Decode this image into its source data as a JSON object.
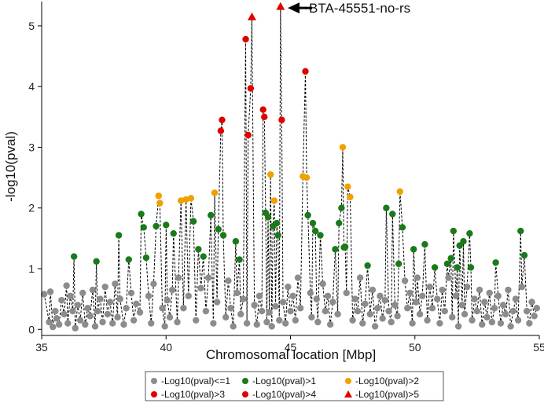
{
  "chart_data": {
    "type": "scatter",
    "title": "",
    "xlabel": "Chromosomal location [Mbp]",
    "ylabel": "-log10(pval)",
    "xlim": [
      35,
      55
    ],
    "ylim": [
      -0.1,
      5.4
    ],
    "xticks": [
      "35",
      "40",
      "45",
      "50",
      "55"
    ],
    "yticks": [
      "0",
      "1",
      "2",
      "3",
      "4",
      "5"
    ],
    "grid": false,
    "annotation": {
      "text": "BTA-45551-no-rs",
      "x": 44.6,
      "y": 5.32
    },
    "colors": {
      "le1": "#8c8c8c",
      "gt1": "#1a7a1a",
      "gt2": "#f0a000",
      "gt3": "#e00000",
      "gt4": "#e00000",
      "gt5": "#e00000",
      "connector": "#000000"
    },
    "legend": [
      {
        "key": "le1",
        "label": "-Log10(pval)<=1",
        "marker": "circle"
      },
      {
        "key": "gt1",
        "label": "-Log10(pval)>1",
        "marker": "circle"
      },
      {
        "key": "gt2",
        "label": "-Log10(pval)>2",
        "marker": "circle"
      },
      {
        "key": "gt3",
        "label": "-Log10(pval)>3",
        "marker": "circle"
      },
      {
        "key": "gt4",
        "label": "-Log10(pval)>4",
        "marker": "circle"
      },
      {
        "key": "gt5",
        "label": "-Log10(pval)>5",
        "marker": "triangle"
      }
    ],
    "peaks": [
      {
        "x": 36.3,
        "y": 1.2
      },
      {
        "x": 37.2,
        "y": 1.12
      },
      {
        "x": 38.1,
        "y": 1.55
      },
      {
        "x": 38.5,
        "y": 1.15
      },
      {
        "x": 39.0,
        "y": 1.9
      },
      {
        "x": 39.1,
        "y": 1.68
      },
      {
        "x": 39.2,
        "y": 1.18
      },
      {
        "x": 39.6,
        "y": 1.7
      },
      {
        "x": 39.7,
        "y": 2.2
      },
      {
        "x": 39.75,
        "y": 2.08
      },
      {
        "x": 40.0,
        "y": 1.72
      },
      {
        "x": 40.3,
        "y": 1.58
      },
      {
        "x": 40.6,
        "y": 2.12
      },
      {
        "x": 40.8,
        "y": 2.14
      },
      {
        "x": 41.0,
        "y": 2.16
      },
      {
        "x": 41.1,
        "y": 1.78
      },
      {
        "x": 41.3,
        "y": 1.32
      },
      {
        "x": 41.5,
        "y": 1.2
      },
      {
        "x": 41.8,
        "y": 1.88
      },
      {
        "x": 41.95,
        "y": 2.25
      },
      {
        "x": 42.1,
        "y": 1.65
      },
      {
        "x": 42.2,
        "y": 3.27
      },
      {
        "x": 42.25,
        "y": 3.45
      },
      {
        "x": 42.3,
        "y": 1.55
      },
      {
        "x": 42.8,
        "y": 1.45
      },
      {
        "x": 42.95,
        "y": 1.15
      },
      {
        "x": 43.2,
        "y": 4.78
      },
      {
        "x": 43.3,
        "y": 3.2
      },
      {
        "x": 43.4,
        "y": 3.97
      },
      {
        "x": 43.45,
        "y": 5.15
      },
      {
        "x": 43.9,
        "y": 3.62
      },
      {
        "x": 43.95,
        "y": 3.5
      },
      {
        "x": 44.0,
        "y": 1.92
      },
      {
        "x": 44.1,
        "y": 1.85
      },
      {
        "x": 44.2,
        "y": 2.55
      },
      {
        "x": 44.3,
        "y": 1.7
      },
      {
        "x": 44.35,
        "y": 2.12
      },
      {
        "x": 44.45,
        "y": 1.75
      },
      {
        "x": 44.5,
        "y": 1.55
      },
      {
        "x": 44.6,
        "y": 5.32
      },
      {
        "x": 44.65,
        "y": 3.45
      },
      {
        "x": 45.5,
        "y": 2.52
      },
      {
        "x": 45.6,
        "y": 4.25
      },
      {
        "x": 45.65,
        "y": 2.5
      },
      {
        "x": 45.7,
        "y": 1.88
      },
      {
        "x": 45.9,
        "y": 1.75
      },
      {
        "x": 46.0,
        "y": 1.62
      },
      {
        "x": 46.2,
        "y": 1.55
      },
      {
        "x": 46.8,
        "y": 1.32
      },
      {
        "x": 46.95,
        "y": 1.75
      },
      {
        "x": 47.05,
        "y": 2.0
      },
      {
        "x": 47.1,
        "y": 3.0
      },
      {
        "x": 47.15,
        "y": 1.35
      },
      {
        "x": 47.2,
        "y": 1.36
      },
      {
        "x": 47.3,
        "y": 2.35
      },
      {
        "x": 47.4,
        "y": 2.18
      },
      {
        "x": 48.1,
        "y": 1.05
      },
      {
        "x": 48.85,
        "y": 2.0
      },
      {
        "x": 49.1,
        "y": 1.9
      },
      {
        "x": 49.4,
        "y": 2.27
      },
      {
        "x": 49.5,
        "y": 1.68
      },
      {
        "x": 49.35,
        "y": 1.08
      },
      {
        "x": 49.95,
        "y": 1.32
      },
      {
        "x": 50.4,
        "y": 1.4
      },
      {
        "x": 50.8,
        "y": 1.02
      },
      {
        "x": 51.3,
        "y": 1.08
      },
      {
        "x": 51.45,
        "y": 1.17
      },
      {
        "x": 51.55,
        "y": 1.62
      },
      {
        "x": 51.7,
        "y": 1.02
      },
      {
        "x": 51.8,
        "y": 1.38
      },
      {
        "x": 51.95,
        "y": 1.45
      },
      {
        "x": 52.2,
        "y": 1.58
      },
      {
        "x": 52.25,
        "y": 1.02
      },
      {
        "x": 53.25,
        "y": 1.1
      },
      {
        "x": 54.25,
        "y": 1.62
      },
      {
        "x": 54.4,
        "y": 1.22
      }
    ],
    "background_points": [
      [
        35.1,
        0.58
      ],
      [
        35.3,
        0.12
      ],
      [
        35.35,
        0.62
      ],
      [
        35.45,
        0.04
      ],
      [
        35.55,
        0.3
      ],
      [
        35.6,
        0.18
      ],
      [
        35.7,
        0.08
      ],
      [
        35.8,
        0.48
      ],
      [
        35.9,
        0.25
      ],
      [
        36.0,
        0.72
      ],
      [
        36.05,
        0.1
      ],
      [
        36.15,
        0.55
      ],
      [
        36.25,
        0.3
      ],
      [
        36.35,
        0.02
      ],
      [
        36.45,
        0.4
      ],
      [
        36.55,
        0.15
      ],
      [
        36.65,
        0.6
      ],
      [
        36.75,
        0.08
      ],
      [
        36.85,
        0.35
      ],
      [
        36.95,
        0.22
      ],
      [
        37.05,
        0.65
      ],
      [
        37.15,
        0.05
      ],
      [
        37.25,
        0.3
      ],
      [
        37.35,
        0.5
      ],
      [
        37.45,
        0.12
      ],
      [
        37.55,
        0.7
      ],
      [
        37.65,
        0.25
      ],
      [
        37.75,
        0.45
      ],
      [
        37.85,
        0.1
      ],
      [
        37.95,
        0.75
      ],
      [
        38.05,
        0.2
      ],
      [
        38.15,
        0.5
      ],
      [
        38.3,
        0.08
      ],
      [
        38.4,
        0.35
      ],
      [
        38.6,
        0.6
      ],
      [
        38.7,
        0.15
      ],
      [
        38.8,
        0.42
      ],
      [
        38.95,
        0.28
      ],
      [
        39.3,
        0.55
      ],
      [
        39.4,
        0.1
      ],
      [
        39.5,
        0.75
      ],
      [
        39.85,
        0.35
      ],
      [
        39.95,
        0.05
      ],
      [
        40.05,
        0.48
      ],
      [
        40.15,
        0.2
      ],
      [
        40.25,
        0.65
      ],
      [
        40.45,
        0.12
      ],
      [
        40.5,
        0.85
      ],
      [
        40.7,
        0.35
      ],
      [
        40.9,
        0.55
      ],
      [
        41.2,
        0.15
      ],
      [
        41.4,
        0.68
      ],
      [
        41.6,
        0.3
      ],
      [
        41.7,
        0.85
      ],
      [
        41.9,
        0.1
      ],
      [
        42.05,
        0.45
      ],
      [
        42.4,
        0.2
      ],
      [
        42.5,
        0.8
      ],
      [
        42.6,
        0.35
      ],
      [
        42.7,
        0.05
      ],
      [
        42.85,
        0.6
      ],
      [
        43.0,
        0.25
      ],
      [
        43.1,
        0.5
      ],
      [
        43.25,
        0.1
      ],
      [
        43.55,
        0.4
      ],
      [
        43.65,
        0.08
      ],
      [
        43.75,
        0.55
      ],
      [
        43.85,
        0.3
      ],
      [
        44.05,
        0.12
      ],
      [
        44.15,
        0.28
      ],
      [
        44.25,
        0.05
      ],
      [
        44.4,
        0.38
      ],
      [
        44.55,
        0.15
      ],
      [
        44.7,
        0.45
      ],
      [
        44.8,
        0.1
      ],
      [
        44.9,
        0.7
      ],
      [
        45.0,
        0.3
      ],
      [
        45.1,
        0.55
      ],
      [
        45.2,
        0.15
      ],
      [
        45.3,
        0.85
      ],
      [
        45.4,
        0.35
      ],
      [
        45.8,
        0.6
      ],
      [
        45.85,
        0.2
      ],
      [
        46.05,
        0.5
      ],
      [
        46.1,
        0.12
      ],
      [
        46.3,
        0.75
      ],
      [
        46.4,
        0.3
      ],
      [
        46.5,
        0.55
      ],
      [
        46.6,
        0.08
      ],
      [
        46.7,
        0.45
      ],
      [
        46.9,
        0.25
      ],
      [
        47.25,
        0.6
      ],
      [
        47.5,
        0.15
      ],
      [
        47.6,
        0.5
      ],
      [
        47.7,
        0.3
      ],
      [
        47.8,
        0.85
      ],
      [
        47.9,
        0.1
      ],
      [
        48.0,
        0.42
      ],
      [
        48.2,
        0.25
      ],
      [
        48.3,
        0.65
      ],
      [
        48.4,
        0.05
      ],
      [
        48.5,
        0.35
      ],
      [
        48.6,
        0.55
      ],
      [
        48.7,
        0.18
      ],
      [
        48.8,
        0.48
      ],
      [
        48.95,
        0.3
      ],
      [
        49.05,
        0.12
      ],
      [
        49.2,
        0.4
      ],
      [
        49.3,
        0.22
      ],
      [
        49.6,
        0.8
      ],
      [
        49.7,
        0.35
      ],
      [
        49.8,
        0.6
      ],
      [
        49.9,
        0.1
      ],
      [
        50.05,
        0.45
      ],
      [
        50.1,
        0.85
      ],
      [
        50.2,
        0.25
      ],
      [
        50.3,
        0.55
      ],
      [
        50.5,
        0.15
      ],
      [
        50.6,
        0.7
      ],
      [
        50.7,
        0.35
      ],
      [
        50.9,
        0.5
      ],
      [
        51.0,
        0.1
      ],
      [
        51.1,
        0.65
      ],
      [
        51.2,
        0.3
      ],
      [
        51.35,
        0.85
      ],
      [
        51.5,
        0.2
      ],
      [
        51.65,
        0.55
      ],
      [
        51.75,
        0.05
      ],
      [
        51.9,
        0.4
      ],
      [
        52.0,
        0.25
      ],
      [
        52.1,
        0.7
      ],
      [
        52.3,
        0.15
      ],
      [
        52.4,
        0.5
      ],
      [
        52.5,
        0.3
      ],
      [
        52.6,
        0.65
      ],
      [
        52.7,
        0.08
      ],
      [
        52.8,
        0.45
      ],
      [
        52.9,
        0.2
      ],
      [
        53.0,
        0.6
      ],
      [
        53.1,
        0.12
      ],
      [
        53.2,
        0.35
      ],
      [
        53.35,
        0.55
      ],
      [
        53.45,
        0.1
      ],
      [
        53.55,
        0.4
      ],
      [
        53.65,
        0.25
      ],
      [
        53.75,
        0.65
      ],
      [
        53.85,
        0.05
      ],
      [
        53.95,
        0.3
      ],
      [
        54.05,
        0.5
      ],
      [
        54.15,
        0.15
      ],
      [
        54.3,
        0.7
      ],
      [
        54.5,
        0.3
      ],
      [
        54.6,
        0.1
      ],
      [
        54.7,
        0.45
      ],
      [
        54.8,
        0.22
      ],
      [
        54.9,
        0.35
      ]
    ]
  }
}
